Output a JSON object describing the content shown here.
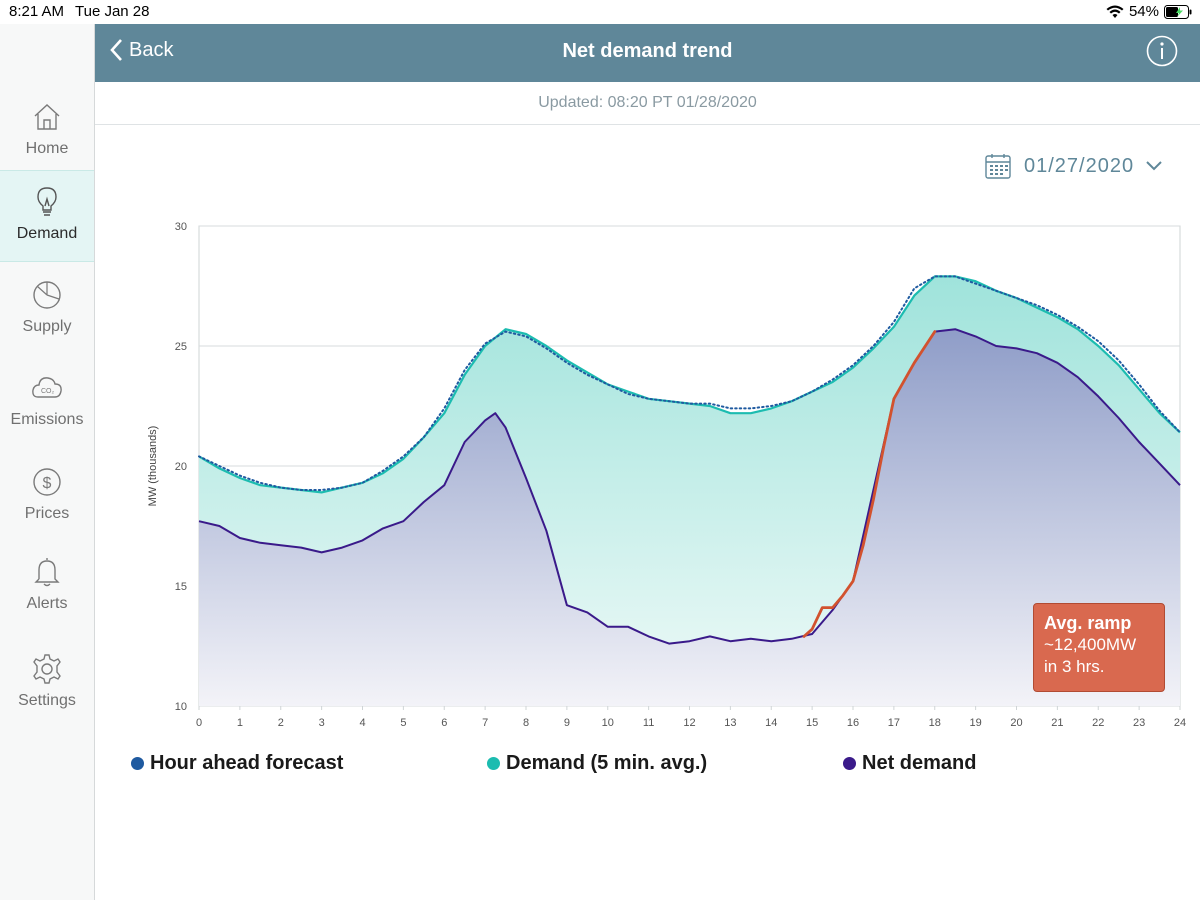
{
  "status_bar": {
    "time": "8:21 AM",
    "date": "Tue Jan 28",
    "battery": "54%"
  },
  "header": {
    "back_label": "Back",
    "title": "Net demand trend"
  },
  "updated": "Updated: 08:20 PT 01/28/2020",
  "date_selector": {
    "value": "01/27/2020"
  },
  "sidebar": {
    "items": [
      {
        "label": "Home"
      },
      {
        "label": "Demand"
      },
      {
        "label": "Supply"
      },
      {
        "label": "Emissions"
      },
      {
        "label": "Prices"
      },
      {
        "label": "Alerts"
      },
      {
        "label": "Settings"
      }
    ]
  },
  "annotation": {
    "title": "Avg. ramp",
    "line1": "~12,400MW",
    "line2": "in 3 hrs."
  },
  "colors": {
    "forecast": "#1f5aa0",
    "demand": "#1cbcb0",
    "net": "#3a1a8a",
    "ramp": "#d2522e",
    "header": "#5f8799"
  },
  "chart_data": {
    "type": "area",
    "ylabel": "MW (thousands)",
    "xlabel": "",
    "xlim": [
      0,
      24
    ],
    "ylim": [
      10,
      30
    ],
    "xticks": [
      "0",
      "1",
      "2",
      "3",
      "4",
      "5",
      "6",
      "7",
      "8",
      "9",
      "10",
      "11",
      "12",
      "13",
      "14",
      "15",
      "16",
      "17",
      "18",
      "19",
      "20",
      "21",
      "22",
      "23",
      "24"
    ],
    "yticks": [
      "10",
      "15",
      "20",
      "25",
      "30"
    ],
    "legend": [
      "Hour ahead forecast",
      "Demand (5 min. avg.)",
      "Net demand"
    ],
    "series": [
      {
        "name": "Hour ahead forecast",
        "style": "dotted",
        "x": [
          0,
          0.5,
          1,
          1.5,
          2,
          2.5,
          3,
          3.5,
          4,
          4.5,
          5,
          5.5,
          6,
          6.5,
          7,
          7.5,
          8,
          8.5,
          9,
          9.5,
          10,
          10.5,
          11,
          11.5,
          12,
          12.5,
          13,
          13.5,
          14,
          14.5,
          15,
          15.5,
          16,
          16.5,
          17,
          17.5,
          18,
          18.5,
          19,
          19.5,
          20,
          20.5,
          21,
          21.5,
          22,
          22.5,
          23,
          23.5,
          24
        ],
        "y": [
          20.4,
          20.0,
          19.6,
          19.3,
          19.1,
          19.0,
          19.0,
          19.1,
          19.3,
          19.8,
          20.4,
          21.2,
          22.4,
          24.0,
          25.1,
          25.6,
          25.4,
          24.9,
          24.3,
          23.8,
          23.4,
          23.0,
          22.8,
          22.7,
          22.6,
          22.6,
          22.4,
          22.4,
          22.5,
          22.7,
          23.1,
          23.6,
          24.2,
          25.0,
          26.0,
          27.4,
          27.9,
          27.9,
          27.6,
          27.3,
          27.0,
          26.7,
          26.3,
          25.8,
          25.2,
          24.4,
          23.4,
          22.3,
          21.4
        ]
      },
      {
        "name": "Demand (5 min. avg.)",
        "style": "area",
        "x": [
          0,
          0.5,
          1,
          1.5,
          2,
          2.5,
          3,
          3.5,
          4,
          4.5,
          5,
          5.5,
          6,
          6.5,
          7,
          7.5,
          8,
          8.5,
          9,
          9.5,
          10,
          10.5,
          11,
          11.5,
          12,
          12.5,
          13,
          13.5,
          14,
          14.5,
          15,
          15.5,
          16,
          16.5,
          17,
          17.5,
          18,
          18.5,
          19,
          19.5,
          20,
          20.5,
          21,
          21.5,
          22,
          22.5,
          23,
          23.5,
          24
        ],
        "y": [
          20.4,
          19.9,
          19.5,
          19.2,
          19.1,
          19.0,
          18.9,
          19.1,
          19.3,
          19.7,
          20.3,
          21.2,
          22.2,
          23.8,
          25.0,
          25.7,
          25.5,
          25.0,
          24.4,
          23.9,
          23.4,
          23.1,
          22.8,
          22.7,
          22.6,
          22.5,
          22.2,
          22.2,
          22.4,
          22.7,
          23.1,
          23.5,
          24.1,
          24.9,
          25.8,
          27.1,
          27.9,
          27.9,
          27.7,
          27.3,
          27.0,
          26.6,
          26.2,
          25.7,
          25.0,
          24.2,
          23.2,
          22.2,
          21.4
        ]
      },
      {
        "name": "Net demand",
        "style": "area",
        "x": [
          0,
          0.5,
          1,
          1.5,
          2,
          2.5,
          3,
          3.5,
          4,
          4.5,
          5,
          5.5,
          6,
          6.5,
          7,
          7.25,
          7.5,
          8,
          8.5,
          9,
          9.5,
          10,
          10.5,
          11,
          11.5,
          12,
          12.5,
          13,
          13.5,
          14,
          14.5,
          15,
          15.5,
          16,
          16.5,
          17,
          17.5,
          18,
          18.5,
          19,
          19.5,
          20,
          20.5,
          21,
          21.5,
          22,
          22.5,
          23,
          23.5,
          24
        ],
        "y": [
          17.7,
          17.5,
          17.0,
          16.8,
          16.7,
          16.6,
          16.4,
          16.6,
          16.9,
          17.4,
          17.7,
          18.5,
          19.2,
          21.0,
          21.9,
          22.2,
          21.6,
          19.5,
          17.3,
          14.2,
          13.9,
          13.3,
          13.3,
          12.9,
          12.6,
          12.7,
          12.9,
          12.7,
          12.8,
          12.7,
          12.8,
          13.0,
          14.0,
          15.2,
          19.0,
          22.8,
          24.3,
          25.6,
          25.7,
          25.4,
          25.0,
          24.9,
          24.7,
          24.3,
          23.7,
          22.9,
          22.0,
          21.0,
          20.1,
          19.2
        ]
      },
      {
        "name": "Ramp highlight",
        "style": "line",
        "x": [
          14.8,
          15,
          15.25,
          15.5,
          15.75,
          16,
          16.25,
          16.5,
          16.75,
          17,
          17.5,
          18
        ],
        "y": [
          12.9,
          13.2,
          14.1,
          14.1,
          14.6,
          15.2,
          16.7,
          18.6,
          20.8,
          22.8,
          24.3,
          25.6
        ]
      }
    ]
  }
}
